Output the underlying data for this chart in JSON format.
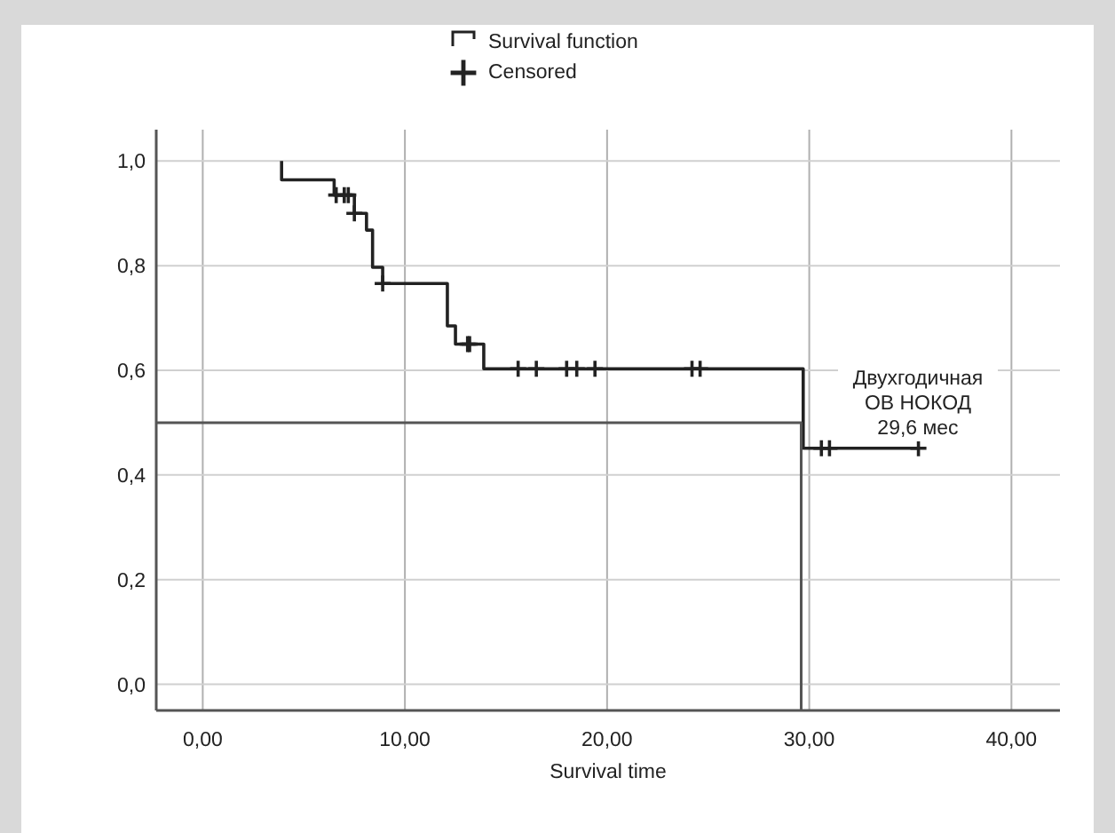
{
  "chart_data": {
    "type": "step",
    "xlabel": "Survival time",
    "xlim": [
      -2.3,
      42.4
    ],
    "ylim": [
      -0.05,
      1.06
    ],
    "xticks": [
      {
        "value": 0,
        "label": "0,00"
      },
      {
        "value": 10,
        "label": "10,00"
      },
      {
        "value": 20,
        "label": "20,00"
      },
      {
        "value": 30,
        "label": "30,00"
      },
      {
        "value": 40,
        "label": "40,00"
      }
    ],
    "yticks": [
      {
        "value": 0,
        "label": "0,0"
      },
      {
        "value": 0.2,
        "label": "0,2"
      },
      {
        "value": 0.4,
        "label": "0,4"
      },
      {
        "value": 0.6,
        "label": "0,6"
      },
      {
        "value": 0.8,
        "label": "0,8"
      },
      {
        "value": 1,
        "label": "1,0"
      }
    ],
    "grid": true,
    "legend": "top",
    "annotations": [
      "Двухгодичная\nОВ НОКОД\n29,6 мес"
    ],
    "series": [
      {
        "name": "Survival function",
        "color": "#222222",
        "x": [
          3.9,
          3.9,
          6.5,
          7.5,
          8.1,
          8.4,
          8.9,
          12.1,
          12.5,
          13.9,
          29.7,
          35.4
        ],
        "values": [
          1.0,
          0.964,
          0.935,
          0.9,
          0.868,
          0.797,
          0.766,
          0.685,
          0.65,
          0.603,
          0.451,
          0.451
        ]
      },
      {
        "name": "Censored",
        "type": "scatter",
        "marker": "cross",
        "color": "#222222",
        "x": [
          6.6,
          7.0,
          7.2,
          7.5,
          8.9,
          13.1,
          13.2,
          15.6,
          16.5,
          18.0,
          18.5,
          19.4,
          24.2,
          24.6,
          30.6,
          31.0,
          35.4
        ],
        "values": [
          0.935,
          0.935,
          0.935,
          0.9,
          0.766,
          0.65,
          0.65,
          0.603,
          0.603,
          0.603,
          0.603,
          0.603,
          0.603,
          0.603,
          0.451,
          0.451,
          0.451
        ]
      },
      {
        "type": "line",
        "color": "#555555",
        "x": [
          -2.3,
          29.6,
          29.6
        ],
        "values": [
          0.5,
          0.5,
          -0.05
        ]
      }
    ]
  }
}
